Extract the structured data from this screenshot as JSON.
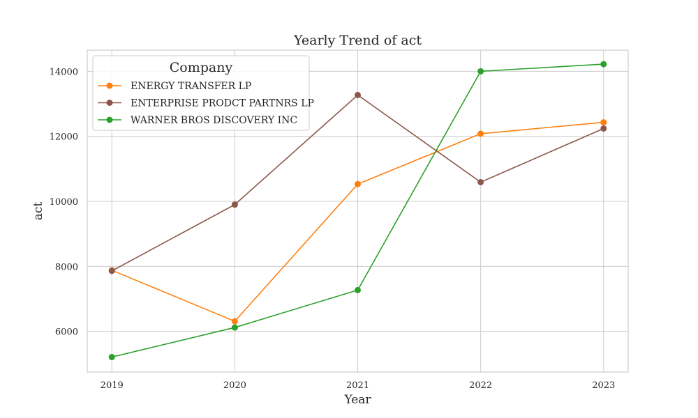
{
  "chart_data": {
    "type": "line",
    "title": "Yearly Trend of act",
    "xlabel": "Year",
    "ylabel": "act",
    "x": [
      2019,
      2020,
      2021,
      2022,
      2023
    ],
    "x_tick_labels": [
      "2019",
      "2020",
      "2021",
      "2022",
      "2023"
    ],
    "y_ticks": [
      6000,
      8000,
      10000,
      12000,
      14000
    ],
    "y_tick_labels": [
      "6000",
      "8000",
      "10000",
      "12000",
      "14000"
    ],
    "xlim": [
      2018.8,
      2023.2
    ],
    "ylim": [
      4750,
      14650
    ],
    "grid": true,
    "legend": {
      "title": "Company",
      "placement": "top-left"
    },
    "series": [
      {
        "name": "ENERGY TRANSFER LP",
        "color": "#ff7f0e",
        "values": [
          7880,
          6310,
          10530,
          12080,
          12430
        ]
      },
      {
        "name": "ENTERPRISE PRODCT PARTNRS LP",
        "color": "#8c564b",
        "values": [
          7860,
          9900,
          13270,
          10590,
          12240
        ]
      },
      {
        "name": "WARNER BROS DISCOVERY INC",
        "color": "#2ca02c",
        "values": [
          5210,
          6120,
          7270,
          14000,
          14220
        ]
      }
    ]
  }
}
